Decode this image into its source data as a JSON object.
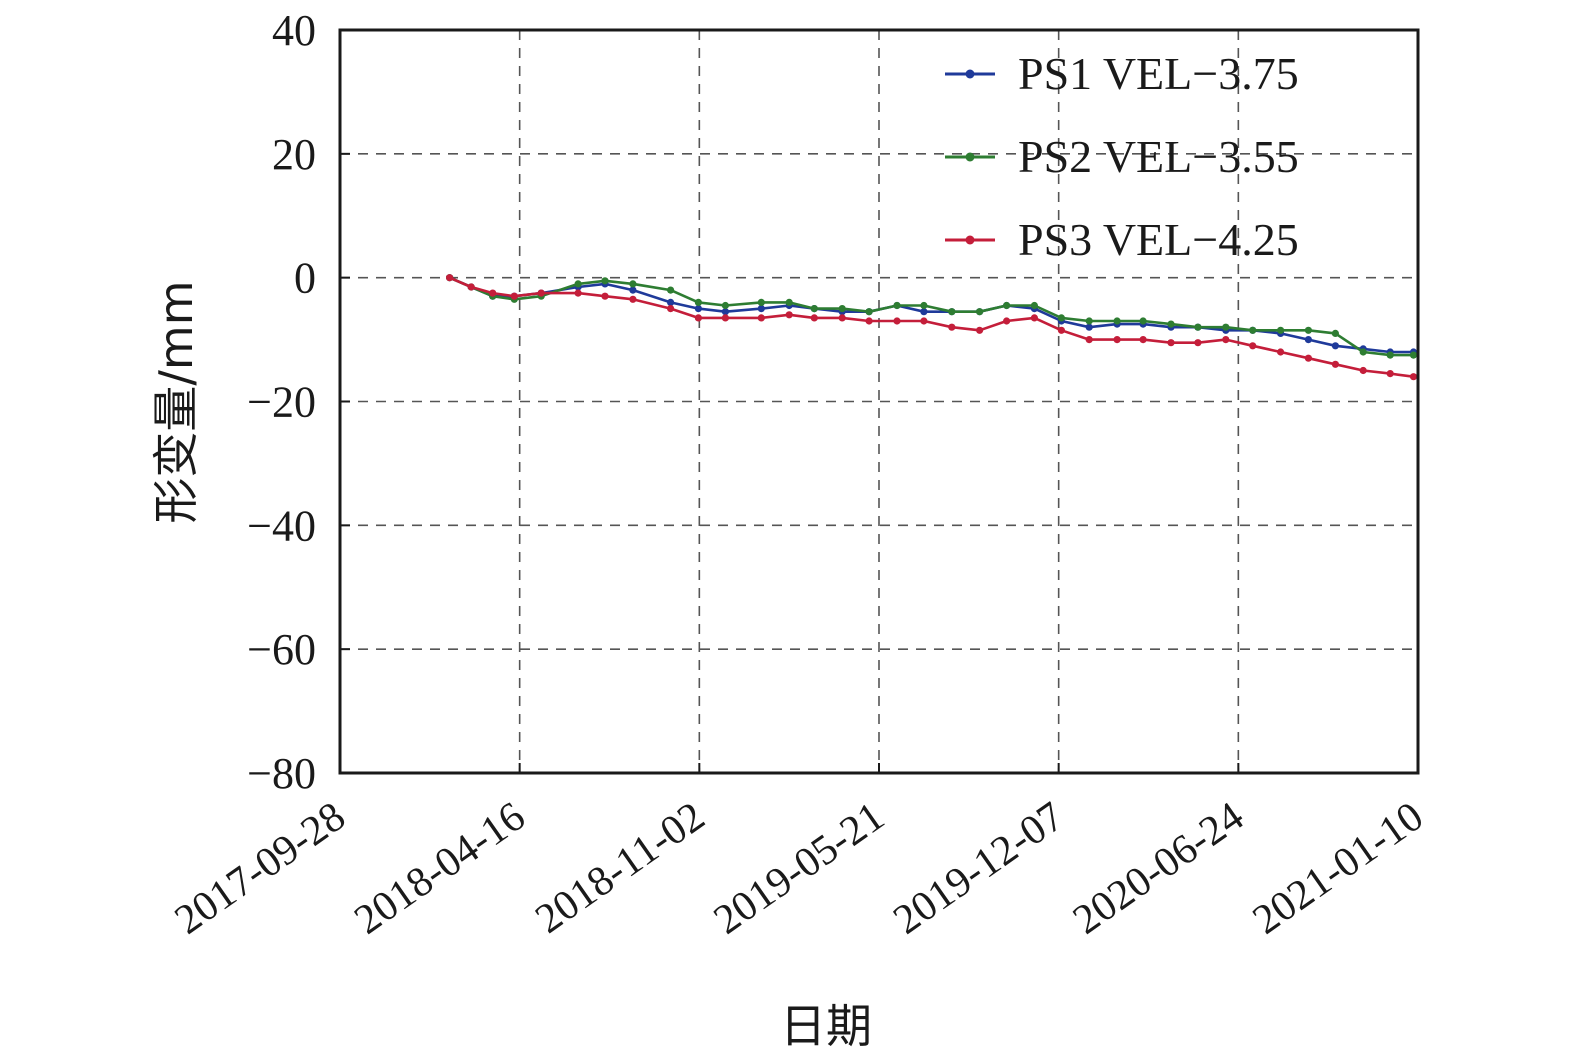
{
  "chart_data": {
    "type": "line",
    "xlabel": "日期",
    "ylabel": "形变量/mm",
    "x_ticks": [
      "2017-09-28",
      "2018-04-16",
      "2018-11-02",
      "2019-05-21",
      "2019-12-07",
      "2020-06-24",
      "2021-01-10"
    ],
    "xlim": [
      "2017-09-28",
      "2021-01-10"
    ],
    "ylim": [
      -80,
      40
    ],
    "y_ticks": [
      "40",
      "20",
      "0",
      "−20",
      "−40",
      "−60",
      "−80"
    ],
    "y_tick_values": [
      40,
      20,
      0,
      -20,
      -40,
      -60,
      -80
    ],
    "grid": true,
    "legend_position": "top-right",
    "series": [
      {
        "name": "PS1 VEL−3.75",
        "color": "#1f3a9a",
        "x": [
          "2018-01-28",
          "2018-02-21",
          "2018-03-17",
          "2018-04-10",
          "2018-05-10",
          "2018-06-20",
          "2018-07-20",
          "2018-08-20",
          "2018-10-01",
          "2018-11-01",
          "2018-12-01",
          "2019-01-10",
          "2019-02-10",
          "2019-03-10",
          "2019-04-10",
          "2019-05-10",
          "2019-06-10",
          "2019-07-10",
          "2019-08-10",
          "2019-09-10",
          "2019-10-10",
          "2019-11-10",
          "2019-12-10",
          "2020-01-10",
          "2020-02-10",
          "2020-03-10",
          "2020-04-10",
          "2020-05-10",
          "2020-06-10",
          "2020-07-10",
          "2020-08-10",
          "2020-09-10",
          "2020-10-10",
          "2020-11-10",
          "2020-12-10",
          "2021-01-05"
        ],
        "values": [
          0,
          -1.5,
          -3,
          -3,
          -2.5,
          -1.5,
          -1,
          -2,
          -4,
          -5,
          -5.5,
          -5,
          -4.5,
          -5,
          -5.5,
          -5.5,
          -4.5,
          -5.5,
          -5.5,
          -5.5,
          -4.5,
          -5,
          -7,
          -8,
          -7.5,
          -7.5,
          -8,
          -8,
          -8.5,
          -8.5,
          -9,
          -10,
          -11,
          -11.5,
          -12,
          -12
        ]
      },
      {
        "name": "PS2 VEL−3.55",
        "color": "#2e7d32",
        "x": [
          "2018-01-28",
          "2018-02-21",
          "2018-03-17",
          "2018-04-10",
          "2018-05-10",
          "2018-06-20",
          "2018-07-20",
          "2018-08-20",
          "2018-10-01",
          "2018-11-01",
          "2018-12-01",
          "2019-01-10",
          "2019-02-10",
          "2019-03-10",
          "2019-04-10",
          "2019-05-10",
          "2019-06-10",
          "2019-07-10",
          "2019-08-10",
          "2019-09-10",
          "2019-10-10",
          "2019-11-10",
          "2019-12-10",
          "2020-01-10",
          "2020-02-10",
          "2020-03-10",
          "2020-04-10",
          "2020-05-10",
          "2020-06-10",
          "2020-07-10",
          "2020-08-10",
          "2020-09-10",
          "2020-10-10",
          "2020-11-10",
          "2020-12-10",
          "2021-01-05"
        ],
        "values": [
          0,
          -1.5,
          -3,
          -3.5,
          -3,
          -1,
          -0.5,
          -1,
          -2,
          -4,
          -4.5,
          -4,
          -4,
          -5,
          -5,
          -5.5,
          -4.5,
          -4.5,
          -5.5,
          -5.5,
          -4.5,
          -4.5,
          -6.5,
          -7,
          -7,
          -7,
          -7.5,
          -8,
          -8,
          -8.5,
          -8.5,
          -8.5,
          -9,
          -12,
          -12.5,
          -12.5
        ]
      },
      {
        "name": "PS3 VEL−4.25",
        "color": "#c41e3a",
        "x": [
          "2018-01-28",
          "2018-02-21",
          "2018-03-17",
          "2018-04-10",
          "2018-05-10",
          "2018-06-20",
          "2018-07-20",
          "2018-08-20",
          "2018-10-01",
          "2018-11-01",
          "2018-12-01",
          "2019-01-10",
          "2019-02-10",
          "2019-03-10",
          "2019-04-10",
          "2019-05-10",
          "2019-06-10",
          "2019-07-10",
          "2019-08-10",
          "2019-09-10",
          "2019-10-10",
          "2019-11-10",
          "2019-12-10",
          "2020-01-10",
          "2020-02-10",
          "2020-03-10",
          "2020-04-10",
          "2020-05-10",
          "2020-06-10",
          "2020-07-10",
          "2020-08-10",
          "2020-09-10",
          "2020-10-10",
          "2020-11-10",
          "2020-12-10",
          "2021-01-05"
        ],
        "values": [
          0,
          -1.5,
          -2.5,
          -3,
          -2.5,
          -2.5,
          -3,
          -3.5,
          -5,
          -6.5,
          -6.5,
          -6.5,
          -6,
          -6.5,
          -6.5,
          -7,
          -7,
          -7,
          -8,
          -8.5,
          -7,
          -6.5,
          -8.5,
          -10,
          -10,
          -10,
          -10.5,
          -10.5,
          -10,
          -11,
          -12,
          -13,
          -14,
          -15,
          -15.5,
          -16
        ]
      }
    ]
  }
}
